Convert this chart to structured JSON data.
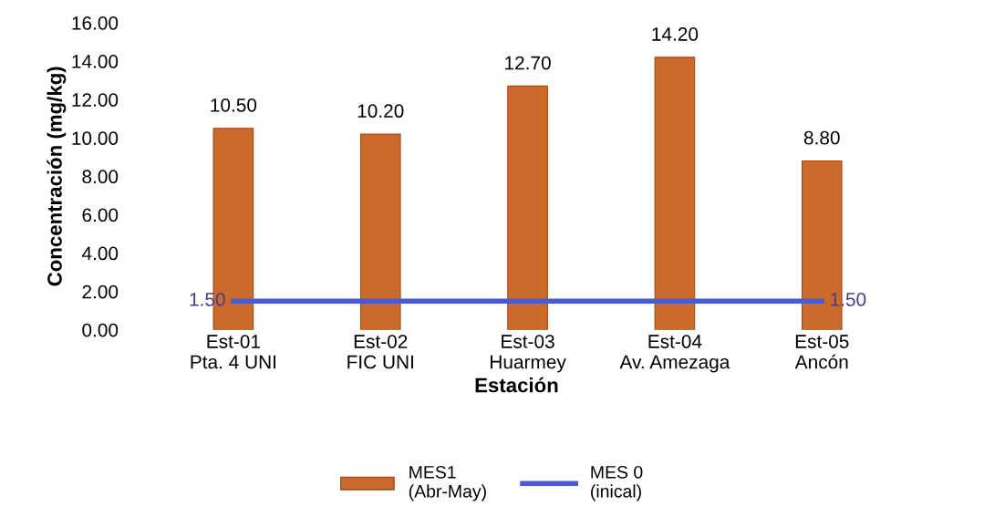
{
  "chart_data": {
    "type": "bar",
    "xlabel": "Estación",
    "ylabel": "Concentración (mg/kg)",
    "categories": [
      "Est-01\nPta. 4 UNI",
      "Est-02\nFIC UNI",
      "Est-03\nHuarmey",
      "Est-04\nAv. Amezaga",
      "Est-05\nAncón"
    ],
    "series": [
      {
        "name": "MES1\n(Abr-May)",
        "color": "#cc6a2c",
        "values": [
          10.5,
          10.2,
          12.7,
          14.2,
          8.8
        ],
        "value_labels": [
          "10.50",
          "10.20",
          "12.70",
          "14.20",
          "8.80"
        ]
      },
      {
        "name": "MES 0\n(inical)",
        "type": "line",
        "color": "#4a5bd0",
        "values": [
          1.5,
          1.5,
          1.5,
          1.5,
          1.5
        ],
        "value_labels": [
          "1.50",
          null,
          null,
          null,
          "1.50"
        ]
      }
    ],
    "ylim": [
      0,
      16
    ],
    "yticks": [
      {
        "value": 0,
        "label": "0.00"
      },
      {
        "value": 2,
        "label": "2.00"
      },
      {
        "value": 4,
        "label": "4.00"
      },
      {
        "value": 6,
        "label": "6.00"
      },
      {
        "value": 8,
        "label": "8.00"
      },
      {
        "value": 10,
        "label": "10.00"
      },
      {
        "value": 12,
        "label": "12.00"
      },
      {
        "value": 14,
        "label": "14.00"
      },
      {
        "value": 16,
        "label": "16.00"
      }
    ],
    "grid": false,
    "legend": "bottom"
  }
}
